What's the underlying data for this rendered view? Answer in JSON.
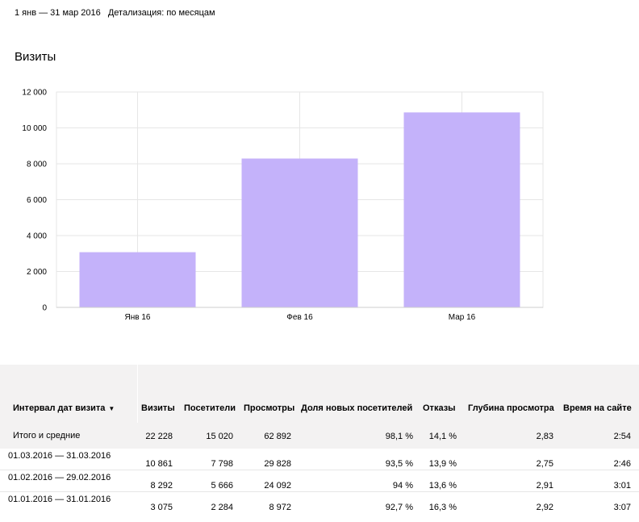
{
  "header": {
    "date_range": "1 янв — 31 мар 2016",
    "detail": "Детализация: по месяцам"
  },
  "section_title": "Визиты",
  "chart_data": {
    "type": "bar",
    "title": "",
    "xlabel": "",
    "ylabel": "",
    "categories": [
      "Янв 16",
      "Фев 16",
      "Мар 16"
    ],
    "values": [
      3075,
      8292,
      10861
    ],
    "ylim": [
      0,
      12000
    ],
    "yticks": [
      0,
      2000,
      4000,
      6000,
      8000,
      10000,
      12000
    ],
    "ytick_labels": [
      "0",
      "2 000",
      "4 000",
      "6 000",
      "8 000",
      "10 000",
      "12 000"
    ],
    "grid": true,
    "bar_color": "#c4b2fa",
    "grid_color": "#e6e6e6"
  },
  "table": {
    "headers": {
      "interval": "Интервал дат визита",
      "sort_arrow": "▼",
      "visits": "Визиты",
      "visitors": "Посетители",
      "pageviews": "Просмотры",
      "new_share": "Доля новых посетителей",
      "bounces": "Отказы",
      "depth": "Глубина просмотра",
      "time": "Время на сайте"
    },
    "total": {
      "label": "Итого и средние",
      "visits": "22 228",
      "visitors": "15 020",
      "pageviews": "62 892",
      "new_share": "98,1 %",
      "bounces": "14,1 %",
      "depth": "2,83",
      "time": "2:54"
    },
    "rows": [
      {
        "label": "01.03.2016 — 31.03.2016",
        "visits": "10 861",
        "visitors": "7 798",
        "pageviews": "29 828",
        "new_share": "93,5 %",
        "bounces": "13,9 %",
        "depth": "2,75",
        "time": "2:46"
      },
      {
        "label": "01.02.2016 — 29.02.2016",
        "visits": "8 292",
        "visitors": "5 666",
        "pageviews": "24 092",
        "new_share": "94 %",
        "bounces": "13,6 %",
        "depth": "2,91",
        "time": "3:01"
      },
      {
        "label": "01.01.2016 — 31.01.2016",
        "visits": "3 075",
        "visitors": "2 284",
        "pageviews": "8 972",
        "new_share": "92,7 %",
        "bounces": "16,3 %",
        "depth": "2,92",
        "time": "3:07"
      }
    ]
  }
}
